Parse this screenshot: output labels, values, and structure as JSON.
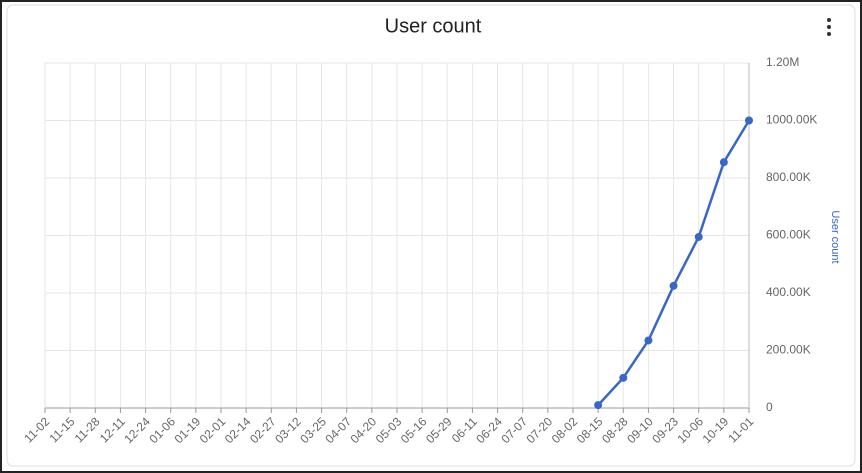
{
  "chart_data": {
    "type": "line",
    "title": "User count",
    "y_label": "User count",
    "categories": [
      "11-02",
      "11-15",
      "11-28",
      "12-11",
      "12-24",
      "01-06",
      "01-19",
      "02-01",
      "02-14",
      "02-27",
      "03-12",
      "03-25",
      "04-07",
      "04-20",
      "05-03",
      "05-16",
      "05-29",
      "06-11",
      "06-24",
      "07-07",
      "07-20",
      "08-02",
      "08-15",
      "08-28",
      "09-10",
      "09-23",
      "10-06",
      "10-19",
      "11-01"
    ],
    "series": [
      {
        "name": "User count",
        "color": "#3a66c4",
        "values": [
          null,
          null,
          null,
          null,
          null,
          null,
          null,
          null,
          null,
          null,
          null,
          null,
          null,
          null,
          null,
          null,
          null,
          null,
          null,
          null,
          null,
          null,
          10000,
          105000,
          235000,
          425000,
          595000,
          855000,
          1000000
        ]
      }
    ],
    "ylim": [
      0,
      1200000
    ],
    "yticks": [
      0,
      {
        "value": 200000,
        "label": "200.00K"
      },
      {
        "value": 400000,
        "label": "400.00K"
      },
      {
        "value": 600000,
        "label": "600.00K"
      },
      {
        "value": 800000,
        "label": "800.00K"
      },
      {
        "value": 1000000,
        "label": "1000.00K"
      },
      {
        "value": 1200000,
        "label": "1.20M"
      }
    ],
    "grid": true
  }
}
